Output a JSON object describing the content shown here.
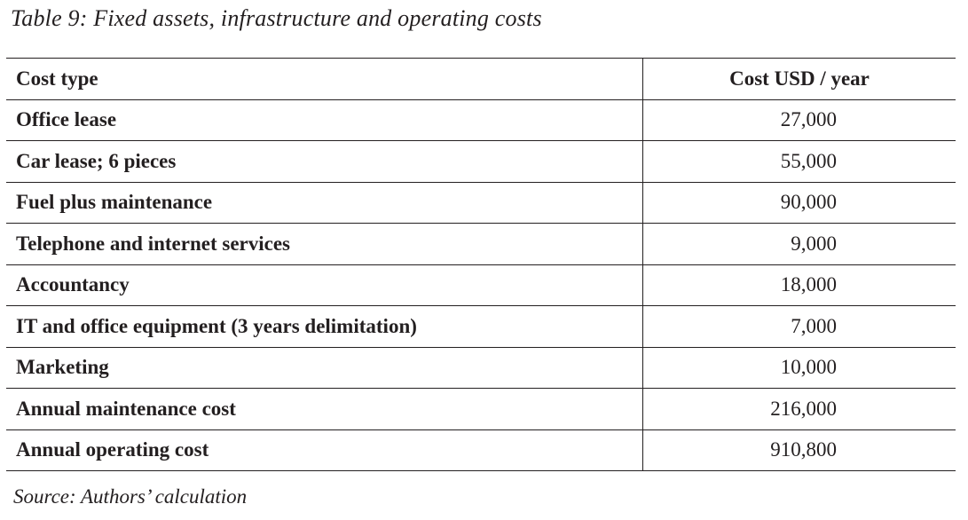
{
  "caption": "Table 9: Fixed assets, infrastructure and operating costs",
  "table": {
    "headers": [
      "Cost type",
      "Cost USD / year"
    ],
    "rows": [
      {
        "label": "Office lease",
        "value": "27,000"
      },
      {
        "label": "Car lease; 6 pieces",
        "value": "55,000"
      },
      {
        "label": "Fuel plus maintenance",
        "value": "90,000"
      },
      {
        "label": "Telephone and internet services",
        "value": "9,000"
      },
      {
        "label": "Accountancy",
        "value": "18,000"
      },
      {
        "label": "IT and office equipment (3 years delimitation)",
        "value": "7,000"
      },
      {
        "label": "Marketing",
        "value": "10,000"
      },
      {
        "label": "Annual maintenance cost",
        "value": "216,000"
      },
      {
        "label": "Annual operating cost",
        "value": "910,800"
      }
    ]
  },
  "source": "Source: Authors’ calculation"
}
